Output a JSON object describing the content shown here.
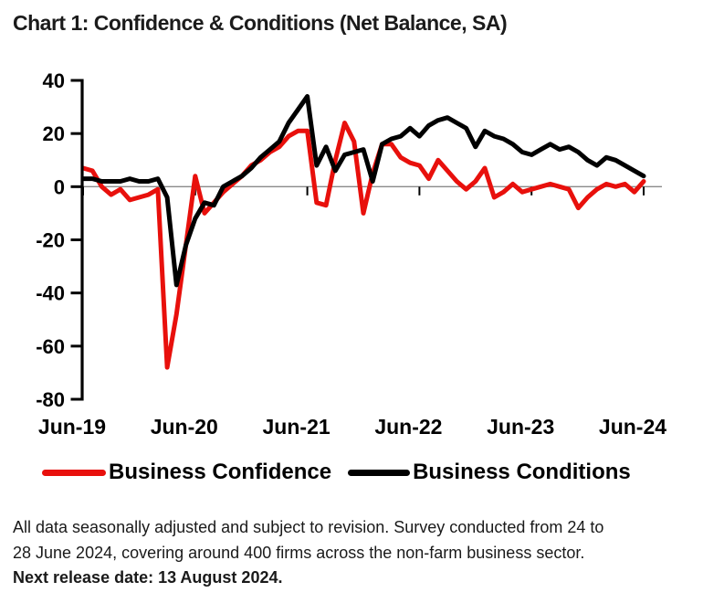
{
  "header": {
    "title": "Chart 1: Confidence & Conditions (Net Balance, SA)"
  },
  "chart_data": {
    "type": "line",
    "title": "Chart 1: Confidence & Conditions (Net Balance, SA)",
    "ylim": [
      -80,
      40
    ],
    "yticks": [
      40,
      20,
      0,
      -20,
      -40,
      -60,
      -80
    ],
    "grid": "horizontal zero line only",
    "legend_position": "bottom",
    "x": [
      "Jun-19",
      "Jul-19",
      "Aug-19",
      "Sep-19",
      "Oct-19",
      "Nov-19",
      "Dec-19",
      "Jan-20",
      "Feb-20",
      "Mar-20",
      "Apr-20",
      "May-20",
      "Jun-20",
      "Jul-20",
      "Aug-20",
      "Sep-20",
      "Oct-20",
      "Nov-20",
      "Dec-20",
      "Jan-21",
      "Feb-21",
      "Mar-21",
      "Apr-21",
      "May-21",
      "Jun-21",
      "Jul-21",
      "Aug-21",
      "Sep-21",
      "Oct-21",
      "Nov-21",
      "Dec-21",
      "Jan-22",
      "Feb-22",
      "Mar-22",
      "Apr-22",
      "May-22",
      "Jun-22",
      "Jul-22",
      "Aug-22",
      "Sep-22",
      "Oct-22",
      "Nov-22",
      "Dec-22",
      "Jan-23",
      "Feb-23",
      "Mar-23",
      "Apr-23",
      "May-23",
      "Jun-23",
      "Jul-23",
      "Aug-23",
      "Sep-23",
      "Oct-23",
      "Nov-23",
      "Dec-23",
      "Jan-24",
      "Feb-24",
      "Mar-24",
      "Apr-24",
      "May-24",
      "Jun-24"
    ],
    "xticks": [
      {
        "label": "Jun-19",
        "index": 0
      },
      {
        "label": "Jun-20",
        "index": 12
      },
      {
        "label": "Jun-21",
        "index": 24
      },
      {
        "label": "Jun-22",
        "index": 36
      },
      {
        "label": "Jun-23",
        "index": 48
      },
      {
        "label": "Jun-24",
        "index": 60
      }
    ],
    "series": [
      {
        "name": "Business Confidence",
        "color": "#e8100c",
        "values": [
          7,
          6,
          0,
          -3,
          -1,
          -5,
          -4,
          -3,
          -1,
          -68,
          -48,
          -22,
          4,
          -10,
          -6,
          -2,
          1,
          4,
          8,
          10,
          13,
          15,
          19,
          21,
          21,
          -6,
          -7,
          10,
          24,
          17,
          -10,
          5,
          16,
          16,
          11,
          9,
          8,
          3,
          10,
          6,
          2,
          -1,
          2,
          7,
          -4,
          -2,
          1,
          -2,
          -1,
          0,
          1,
          0,
          -1,
          -8,
          -4,
          -1,
          1,
          0,
          1,
          -2,
          2
        ]
      },
      {
        "name": "Business Conditions",
        "color": "#000000",
        "values": [
          3,
          3,
          2,
          2,
          2,
          3,
          2,
          2,
          3,
          -4,
          -37,
          -22,
          -12,
          -6,
          -7,
          0,
          2,
          4,
          7,
          11,
          14,
          17,
          24,
          29,
          34,
          8,
          15,
          6,
          12,
          13,
          14,
          2,
          16,
          18,
          19,
          22,
          19,
          23,
          25,
          26,
          24,
          22,
          15,
          21,
          19,
          18,
          16,
          13,
          12,
          14,
          16,
          14,
          15,
          13,
          10,
          8,
          11,
          10,
          8,
          6,
          4
        ]
      }
    ]
  },
  "legend": {
    "items": [
      {
        "label": "Business Confidence",
        "color": "#e8100c"
      },
      {
        "label": "Business Conditions",
        "color": "#000000"
      }
    ]
  },
  "footnote": {
    "line1": "All data seasonally adjusted and subject to revision. Survey conducted from 24 to",
    "line2": "28 June 2024, covering around 400 firms across the non-farm business sector.",
    "line3_bold": "Next release date: 13 August 2024."
  },
  "colors": {
    "confidence_red": "#e8100c",
    "conditions_black": "#000000",
    "zero_gridline": "#8a8a8a",
    "text": "#1a1a1a"
  }
}
